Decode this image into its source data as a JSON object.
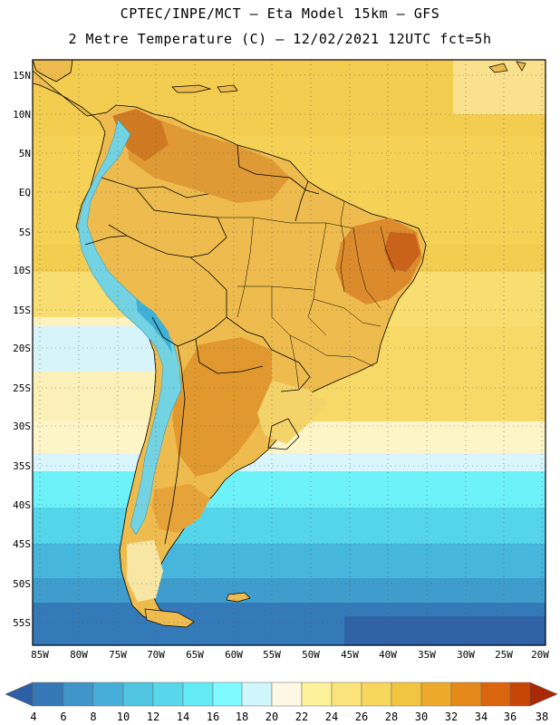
{
  "header": {
    "line1": "CPTEC/INPE/MCT –  Eta Model 15km – GFS",
    "line2": "2 Metre Temperature (C) – 12/02/2021 12UTC fct=5h"
  },
  "axes": {
    "lat_labels": [
      "15N",
      "10N",
      "5N",
      "EQ",
      "5S",
      "10S",
      "15S",
      "20S",
      "25S",
      "30S",
      "35S",
      "40S",
      "45S",
      "50S",
      "55S"
    ],
    "lon_labels": [
      "85W",
      "80W",
      "75W",
      "70W",
      "65W",
      "60W",
      "55W",
      "50W",
      "45W",
      "40W",
      "35W",
      "30W",
      "25W",
      "20W"
    ]
  },
  "colorbar": {
    "ticks": [
      "4",
      "6",
      "8",
      "10",
      "12",
      "14",
      "16",
      "18",
      "20",
      "22",
      "24",
      "26",
      "28",
      "30",
      "32",
      "34",
      "36",
      "38"
    ],
    "colors": [
      "#2e5fa2",
      "#3478b6",
      "#3f95c8",
      "#46aed8",
      "#4fc5e2",
      "#58d7ea",
      "#63ebf5",
      "#7ffaff",
      "#cff6fb",
      "#fdf8e4",
      "#fdf29a",
      "#fae37a",
      "#f6d75c",
      "#f2c540",
      "#eda92a",
      "#e58a1a",
      "#db650e",
      "#c84508",
      "#a82a05"
    ]
  },
  "map": {
    "ocean_color": "#f2ce4e",
    "land_color": "#eeb64a",
    "hot_color": "#dd8d2c",
    "andes_color": "#7bd8e6"
  }
}
